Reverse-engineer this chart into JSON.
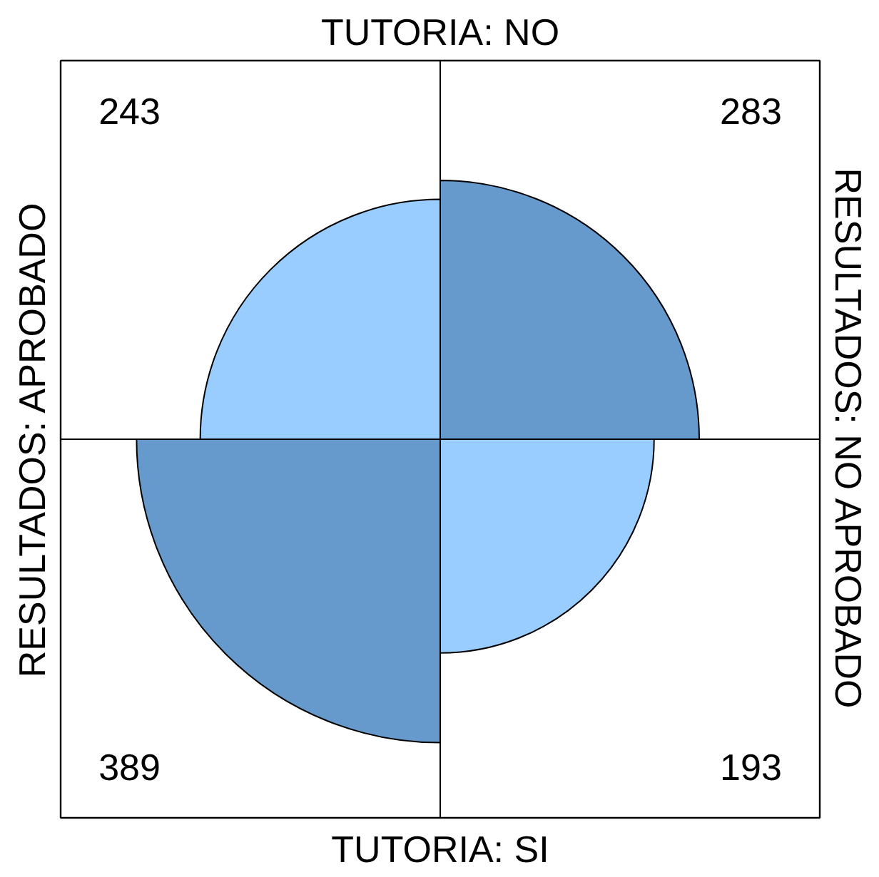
{
  "chart_data": {
    "type": "other",
    "title": "TUTORIA: NO",
    "xlabel": "TUTORIA: SI",
    "ylabel": "RESULTADOS: APROBADO",
    "y2label": "RESULTADOS: NO APROBADO",
    "categories": [
      null,
      null,
      null,
      null
    ],
    "values": [
      243,
      283,
      389,
      193
    ],
    "colors": [
      "#99ccff",
      "#6699cc",
      "#6699cc",
      "#99ccff"
    ],
    "data_labels": true
  }
}
